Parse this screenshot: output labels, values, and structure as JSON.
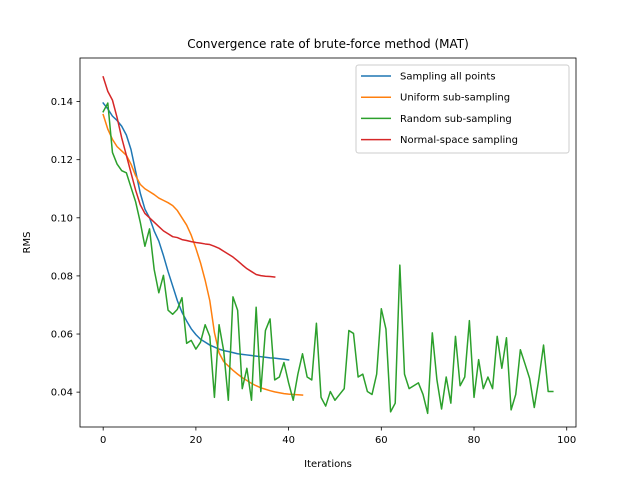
{
  "chart_data": {
    "type": "line",
    "title": "Convergence rate of brute-force method (MAT)",
    "xlabel": "Iterations",
    "ylabel": "RMS",
    "xlim": [
      -5,
      102
    ],
    "ylim": [
      0.028,
      0.155
    ],
    "xticks": [
      0,
      20,
      40,
      60,
      80,
      100
    ],
    "yticks": [
      0.04,
      0.06,
      0.08,
      0.1,
      0.12,
      0.14
    ],
    "xtick_labels": [
      "0",
      "20",
      "40",
      "60",
      "80",
      "100"
    ],
    "ytick_labels": [
      "0.04",
      "0.06",
      "0.08",
      "0.10",
      "0.12",
      "0.14"
    ],
    "grid": false,
    "legend_position": "top-right",
    "series": [
      {
        "name": "Sampling all points",
        "color": "#1f77b4",
        "x": [
          0,
          1,
          2,
          3,
          4,
          5,
          6,
          7,
          8,
          9,
          10,
          11,
          12,
          13,
          14,
          15,
          16,
          17,
          18,
          19,
          20,
          21,
          22,
          23,
          24,
          25,
          26,
          27,
          28,
          29,
          30,
          31,
          32,
          33,
          34,
          35,
          36,
          37,
          38,
          39,
          40
        ],
        "y": [
          0.1395,
          0.1375,
          0.135,
          0.1335,
          0.1315,
          0.1285,
          0.1235,
          0.116,
          0.1085,
          0.103,
          0.1,
          0.0955,
          0.092,
          0.087,
          0.0815,
          0.0765,
          0.0715,
          0.0675,
          0.0645,
          0.0618,
          0.0598,
          0.0582,
          0.0572,
          0.0562,
          0.0555,
          0.0548,
          0.0543,
          0.054,
          0.0536,
          0.0532,
          0.053,
          0.0528,
          0.0526,
          0.0524,
          0.0522,
          0.052,
          0.0518,
          0.0517,
          0.0515,
          0.0513,
          0.0511
        ]
      },
      {
        "name": "Uniform sub-sampling",
        "color": "#ff7f0e",
        "x": [
          0,
          1,
          2,
          3,
          4,
          5,
          6,
          7,
          8,
          9,
          10,
          11,
          12,
          13,
          14,
          15,
          16,
          17,
          18,
          19,
          20,
          21,
          22,
          23,
          24,
          25,
          26,
          27,
          28,
          29,
          30,
          31,
          32,
          33,
          34,
          35,
          36,
          37,
          38,
          39,
          40,
          41,
          42,
          43
        ],
        "y": [
          0.1355,
          0.1305,
          0.127,
          0.1245,
          0.123,
          0.1215,
          0.1185,
          0.1145,
          0.1115,
          0.11,
          0.109,
          0.108,
          0.1068,
          0.106,
          0.1052,
          0.1042,
          0.1025,
          0.1,
          0.0975,
          0.094,
          0.0895,
          0.0845,
          0.0785,
          0.0715,
          0.0605,
          0.0535,
          0.0505,
          0.049,
          0.0475,
          0.0462,
          0.045,
          0.044,
          0.043,
          0.0422,
          0.0415,
          0.041,
          0.0405,
          0.0401,
          0.0398,
          0.0395,
          0.0393,
          0.0392,
          0.0391,
          0.039
        ]
      },
      {
        "name": "Random sub-sampling",
        "color": "#2ca02c",
        "x": [
          0,
          1,
          2,
          3,
          4,
          5,
          6,
          7,
          8,
          9,
          10,
          11,
          12,
          13,
          14,
          15,
          16,
          17,
          18,
          19,
          20,
          21,
          22,
          23,
          24,
          25,
          26,
          27,
          28,
          29,
          30,
          31,
          32,
          33,
          34,
          35,
          36,
          37,
          38,
          39,
          40,
          41,
          42,
          43,
          44,
          45,
          46,
          47,
          48,
          49,
          50,
          51,
          52,
          53,
          54,
          55,
          56,
          57,
          58,
          59,
          60,
          61,
          62,
          63,
          64,
          65,
          66,
          67,
          68,
          69,
          70,
          71,
          72,
          73,
          74,
          75,
          76,
          77,
          78,
          79,
          80,
          81,
          82,
          83,
          84,
          85,
          86,
          87,
          88,
          89,
          90,
          91,
          92,
          93,
          94,
          95,
          96,
          97
        ],
        "y": [
          0.1365,
          0.1395,
          0.1225,
          0.1185,
          0.1162,
          0.1155,
          0.1105,
          0.1055,
          0.0985,
          0.0902,
          0.0962,
          0.0822,
          0.0742,
          0.0802,
          0.0682,
          0.0668,
          0.0685,
          0.0725,
          0.0568,
          0.0578,
          0.0548,
          0.0572,
          0.0632,
          0.0592,
          0.0382,
          0.0632,
          0.0542,
          0.0372,
          0.0728,
          0.0682,
          0.0412,
          0.0482,
          0.0372,
          0.0692,
          0.0402,
          0.0612,
          0.0652,
          0.0442,
          0.0452,
          0.0502,
          0.0432,
          0.0372,
          0.0462,
          0.0532,
          0.0452,
          0.0442,
          0.0637,
          0.0382,
          0.0352,
          0.0402,
          0.0372,
          0.0392,
          0.0412,
          0.0612,
          0.0602,
          0.0452,
          0.0462,
          0.0402,
          0.0392,
          0.0462,
          0.0687,
          0.0617,
          0.0332,
          0.0362,
          0.0837,
          0.0462,
          0.0412,
          0.0422,
          0.0432,
          0.0392,
          0.0327,
          0.0604,
          0.0442,
          0.0342,
          0.0452,
          0.0362,
          0.0592,
          0.0422,
          0.0452,
          0.0646,
          0.0382,
          0.0512,
          0.0412,
          0.0452,
          0.0412,
          0.0592,
          0.0482,
          0.0587,
          0.0339,
          0.0392,
          0.0546,
          0.0497,
          0.0447,
          0.0347,
          0.0447,
          0.0562,
          0.0402,
          0.0402
        ]
      },
      {
        "name": "Normal-space sampling",
        "color": "#d62728",
        "x": [
          0,
          1,
          2,
          3,
          4,
          5,
          6,
          7,
          8,
          9,
          10,
          11,
          12,
          13,
          14,
          15,
          16,
          17,
          18,
          19,
          20,
          21,
          22,
          23,
          24,
          25,
          26,
          27,
          28,
          29,
          30,
          31,
          32,
          33,
          34,
          35,
          36,
          37
        ],
        "y": [
          0.1485,
          0.1435,
          0.1405,
          0.1345,
          0.1275,
          0.1215,
          0.1155,
          0.1095,
          0.1045,
          0.1015,
          0.1,
          0.0985,
          0.097,
          0.0955,
          0.0945,
          0.0935,
          0.0932,
          0.0925,
          0.0922,
          0.0918,
          0.0915,
          0.0913,
          0.091,
          0.0908,
          0.0902,
          0.0895,
          0.0885,
          0.0875,
          0.0865,
          0.0852,
          0.0838,
          0.0825,
          0.0815,
          0.0805,
          0.0801,
          0.0799,
          0.0798,
          0.0796
        ]
      }
    ]
  }
}
